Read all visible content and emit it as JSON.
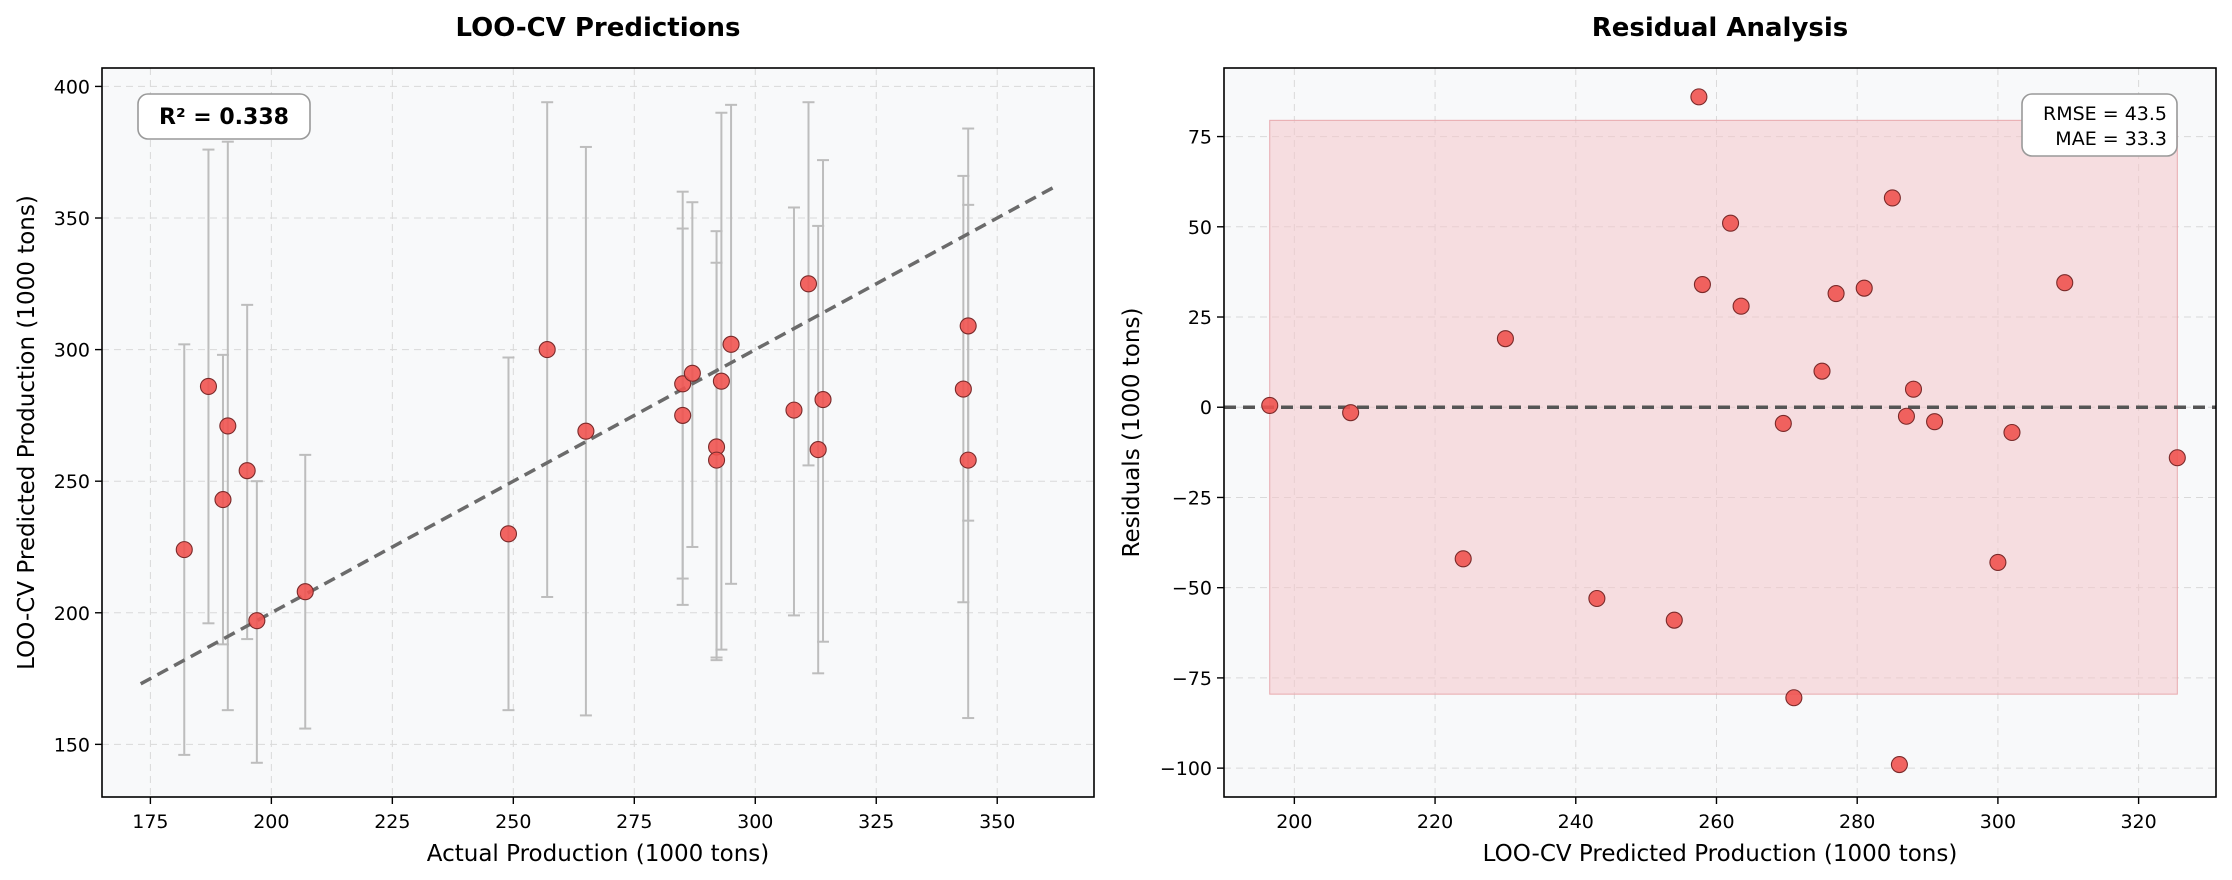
{
  "colors": {
    "background": "#ffffff",
    "plot_bg": "#f8f9fa",
    "point_fill": "#ef5350",
    "point_edge": "#7a2a2a",
    "errorbar": "#bdbdbd",
    "trend_line": "#6b6b6b",
    "zero_line": "#555555",
    "band_fill": "#f4c7cb",
    "grid": "#d9d9d9"
  },
  "chart_data": [
    {
      "type": "scatter",
      "title": "LOO-CV Predictions",
      "xlabel": "Actual Production (1000 tons)",
      "ylabel": "LOO-CV Predicted Production (1000 tons)",
      "xlim": [
        165,
        370
      ],
      "ylim": [
        130,
        407
      ],
      "xticks": [
        175,
        200,
        225,
        250,
        275,
        300,
        325,
        350
      ],
      "yticks": [
        150,
        200,
        250,
        300,
        350,
        400
      ],
      "grid": true,
      "annotation": "R² = 0.338",
      "trend_line": {
        "x": [
          173,
          362
        ],
        "y": [
          173,
          362
        ]
      },
      "points": [
        {
          "x": 182,
          "y": 224,
          "err_low": 146,
          "err_high": 302
        },
        {
          "x": 187,
          "y": 286,
          "err_low": 196,
          "err_high": 376
        },
        {
          "x": 190,
          "y": 243,
          "err_low": 188,
          "err_high": 298
        },
        {
          "x": 191,
          "y": 271,
          "err_low": 163,
          "err_high": 379
        },
        {
          "x": 195,
          "y": 254,
          "err_low": 190,
          "err_high": 317
        },
        {
          "x": 197,
          "y": 197,
          "err_low": 143,
          "err_high": 250
        },
        {
          "x": 207,
          "y": 208,
          "err_low": 156,
          "err_high": 260
        },
        {
          "x": 249,
          "y": 230,
          "err_low": 163,
          "err_high": 297
        },
        {
          "x": 257,
          "y": 300,
          "err_low": 206,
          "err_high": 394
        },
        {
          "x": 265,
          "y": 269,
          "err_low": 161,
          "err_high": 377
        },
        {
          "x": 285,
          "y": 287,
          "err_low": 213,
          "err_high": 360
        },
        {
          "x": 285,
          "y": 275,
          "err_low": 203,
          "err_high": 346
        },
        {
          "x": 287,
          "y": 291,
          "err_low": 225,
          "err_high": 356
        },
        {
          "x": 292,
          "y": 263,
          "err_low": 183,
          "err_high": 345
        },
        {
          "x": 292,
          "y": 258,
          "err_low": 182,
          "err_high": 333
        },
        {
          "x": 293,
          "y": 288,
          "err_low": 186,
          "err_high": 390
        },
        {
          "x": 295,
          "y": 302,
          "err_low": 211,
          "err_high": 393
        },
        {
          "x": 308,
          "y": 277,
          "err_low": 199,
          "err_high": 354
        },
        {
          "x": 311,
          "y": 325,
          "err_low": 256,
          "err_high": 394
        },
        {
          "x": 313,
          "y": 262,
          "err_low": 177,
          "err_high": 347
        },
        {
          "x": 314,
          "y": 281,
          "err_low": 189,
          "err_high": 372
        },
        {
          "x": 343,
          "y": 285,
          "err_low": 204,
          "err_high": 366
        },
        {
          "x": 344,
          "y": 309,
          "err_low": 235,
          "err_high": 384
        },
        {
          "x": 344,
          "y": 258,
          "err_low": 160,
          "err_high": 355
        }
      ]
    },
    {
      "type": "scatter",
      "title": "Residual Analysis",
      "xlabel": "LOO-CV Predicted Production (1000 tons)",
      "ylabel": "Residuals (1000 tons)",
      "xlim": [
        190,
        331
      ],
      "ylim": [
        -108,
        94
      ],
      "xticks": [
        200,
        220,
        240,
        260,
        280,
        300,
        320
      ],
      "yticks": [
        75,
        50,
        25,
        0,
        -25,
        -50,
        -75,
        -100
      ],
      "ytick_labels": [
        "75",
        "50",
        "25",
        "0",
        "−25",
        "−50",
        "−75",
        "−100"
      ],
      "grid": true,
      "annotation_lines": [
        "RMSE = 43.5",
        "MAE = 33.3"
      ],
      "zero_line": 0,
      "band": {
        "x": [
          196.5,
          325.5
        ],
        "y": [
          -79.5,
          79.5
        ]
      },
      "points": [
        {
          "x": 196.5,
          "y": 0.5
        },
        {
          "x": 208,
          "y": -1.5
        },
        {
          "x": 224,
          "y": -42
        },
        {
          "x": 230,
          "y": 19
        },
        {
          "x": 243,
          "y": -53
        },
        {
          "x": 254,
          "y": -59
        },
        {
          "x": 257.5,
          "y": 86
        },
        {
          "x": 258,
          "y": 34
        },
        {
          "x": 262,
          "y": 51
        },
        {
          "x": 263.5,
          "y": 28
        },
        {
          "x": 269.5,
          "y": -4.5
        },
        {
          "x": 271,
          "y": -80.5
        },
        {
          "x": 275,
          "y": 10
        },
        {
          "x": 277,
          "y": 31.5
        },
        {
          "x": 281,
          "y": 33
        },
        {
          "x": 285,
          "y": 58
        },
        {
          "x": 286,
          "y": -99
        },
        {
          "x": 287,
          "y": -2.5
        },
        {
          "x": 288,
          "y": 5
        },
        {
          "x": 291,
          "y": -4
        },
        {
          "x": 300,
          "y": -43
        },
        {
          "x": 302,
          "y": -7
        },
        {
          "x": 309.5,
          "y": 34.5
        },
        {
          "x": 325.5,
          "y": -14
        }
      ]
    }
  ]
}
